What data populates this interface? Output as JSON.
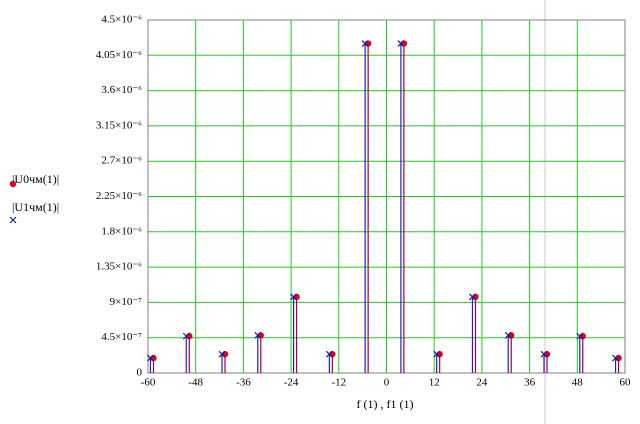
{
  "chart_data": {
    "type": "stem",
    "x_label": "f (1) , f1 (1)",
    "x": [
      -59,
      -50,
      -41,
      -32,
      -23,
      -14,
      -5,
      4,
      13,
      22,
      31,
      40,
      49,
      58
    ],
    "series": [
      {
        "name": "|U0чм(1)|",
        "color": "#e0001b",
        "stem_color": "#a0003a",
        "marker": "circle",
        "values": [
          1.9e-07,
          4.7e-07,
          2.4e-07,
          4.8e-07,
          9.7e-07,
          2.4e-07,
          4.2e-06,
          4.2e-06,
          2.4e-07,
          9.7e-07,
          4.8e-07,
          2.4e-07,
          4.7e-07,
          1.9e-07
        ]
      },
      {
        "name": "|U1чм(1)|",
        "color": "#1a1aa0",
        "stem_color": "#2020c0",
        "marker": "x",
        "values": [
          1.9e-07,
          4.7e-07,
          2.4e-07,
          4.8e-07,
          9.7e-07,
          2.4e-07,
          4.2e-06,
          4.2e-06,
          2.4e-07,
          9.7e-07,
          4.8e-07,
          2.4e-07,
          4.7e-07,
          1.9e-07
        ]
      }
    ],
    "xlim": [
      -60,
      60
    ],
    "xticks": [
      -60,
      -48,
      -36,
      -24,
      -12,
      0,
      12,
      24,
      36,
      48,
      60
    ],
    "ylim": [
      0,
      4.5e-06
    ],
    "yticks": [
      0,
      {
        "value": 4.5e-07,
        "label": "4.5×10⁻⁷"
      },
      {
        "value": 9e-07,
        "label": "9×10⁻⁷"
      },
      {
        "value": 1.35e-06,
        "label": "1.35×10⁻⁶"
      },
      {
        "value": 1.8e-06,
        "label": "1.8×10⁻⁶"
      },
      {
        "value": 2.25e-06,
        "label": "2.25×10⁻⁶"
      },
      {
        "value": 2.7e-06,
        "label": "2.7×10⁻⁶"
      },
      {
        "value": 3.15e-06,
        "label": "3.15×10⁻⁶"
      },
      {
        "value": 3.6e-06,
        "label": "3.6×10⁻⁶"
      },
      {
        "value": 4.05e-06,
        "label": "4.05×10⁻⁶"
      },
      {
        "value": 4.5e-06,
        "label": "4.5×10⁻⁶"
      }
    ],
    "grid": true,
    "grid_color": "#22cc22"
  }
}
